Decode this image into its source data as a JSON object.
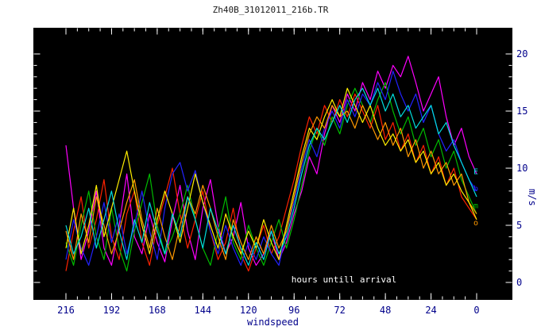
{
  "title": "Zh40B_31012011_216b.TR",
  "colors": {
    "page_bg": "#ffffff",
    "plot_bg": "#000000",
    "axis_text": "#00008b",
    "title_text": "#1a1a1a",
    "tick_mark": "#ffffff",
    "inner_label_text": "#ffffff"
  },
  "chart_data": {
    "type": "line",
    "title": "Zh40B_31012011_216b.TR",
    "xlabel": "windspeed",
    "inner_xlabel": "hours untill arrival",
    "ylabel": "m/s",
    "xlim": [
      216,
      0
    ],
    "ylim": [
      0,
      20
    ],
    "x_reversed": true,
    "grid": false,
    "legend": "none",
    "x_ticks": [
      216,
      192,
      168,
      144,
      120,
      96,
      72,
      48,
      24,
      0
    ],
    "y_ticks": [
      0,
      5,
      10,
      15,
      20
    ],
    "x_minor_step": 6,
    "y_minor_step": 1,
    "x": [
      216,
      212,
      208,
      204,
      200,
      196,
      192,
      188,
      184,
      180,
      176,
      172,
      168,
      164,
      160,
      156,
      152,
      148,
      144,
      140,
      136,
      132,
      128,
      124,
      120,
      116,
      112,
      108,
      104,
      100,
      96,
      92,
      88,
      84,
      80,
      76,
      72,
      68,
      64,
      60,
      56,
      52,
      48,
      44,
      40,
      36,
      32,
      28,
      24,
      20,
      16,
      12,
      8,
      4,
      0
    ],
    "series": [
      {
        "name": "magenta",
        "color": "#ff00ff",
        "values": [
          12.0,
          6.5,
          2.0,
          4.5,
          8.0,
          3.0,
          1.5,
          5.0,
          9.5,
          4.0,
          2.5,
          6.0,
          3.5,
          1.8,
          5.5,
          8.5,
          4.5,
          2.0,
          6.5,
          9.0,
          5.0,
          2.5,
          4.0,
          7.0,
          3.0,
          1.5,
          2.5,
          4.5,
          2.0,
          3.5,
          6.0,
          8.0,
          11.0,
          9.5,
          13.0,
          15.5,
          14.0,
          16.5,
          15.0,
          17.5,
          16.0,
          18.5,
          17.0,
          19.0,
          18.0,
          19.8,
          17.5,
          15.0,
          16.5,
          18.0,
          14.5,
          12.0,
          13.5,
          11.0,
          9.5
        ]
      },
      {
        "name": "red",
        "color": "#ff2200",
        "values": [
          1.0,
          4.5,
          7.5,
          3.0,
          5.5,
          9.0,
          4.0,
          2.0,
          6.0,
          8.0,
          3.5,
          1.5,
          5.0,
          7.5,
          10.0,
          6.0,
          3.0,
          5.5,
          8.0,
          4.5,
          2.0,
          3.5,
          6.5,
          2.5,
          1.0,
          3.0,
          5.0,
          2.5,
          4.0,
          6.5,
          9.0,
          12.0,
          14.5,
          13.0,
          15.5,
          14.0,
          16.0,
          14.5,
          16.5,
          15.0,
          13.5,
          15.5,
          12.5,
          14.0,
          11.5,
          13.0,
          10.5,
          12.0,
          9.5,
          11.0,
          8.5,
          10.0,
          7.5,
          6.5,
          5.5
        ]
      },
      {
        "name": "green",
        "color": "#00bb00",
        "values": [
          3.5,
          1.5,
          5.0,
          8.0,
          4.0,
          2.0,
          6.5,
          3.0,
          1.0,
          4.5,
          7.0,
          9.5,
          5.0,
          2.5,
          4.0,
          6.0,
          8.5,
          5.5,
          3.0,
          1.5,
          4.5,
          7.5,
          3.5,
          2.0,
          5.0,
          3.0,
          1.5,
          3.5,
          5.5,
          3.0,
          5.5,
          8.5,
          11.5,
          13.5,
          12.0,
          14.5,
          13.0,
          15.5,
          17.0,
          15.5,
          14.0,
          16.0,
          17.5,
          15.0,
          13.0,
          14.5,
          12.0,
          13.5,
          11.0,
          12.5,
          10.0,
          11.5,
          9.0,
          7.5,
          6.0
        ]
      },
      {
        "name": "blue",
        "color": "#2222ff",
        "values": [
          2.0,
          5.5,
          3.0,
          1.5,
          4.0,
          7.0,
          3.5,
          6.0,
          2.5,
          5.0,
          8.0,
          4.5,
          2.0,
          6.5,
          9.5,
          10.5,
          8.0,
          9.8,
          7.0,
          4.5,
          2.5,
          5.0,
          3.0,
          1.5,
          3.5,
          2.0,
          4.0,
          2.5,
          1.5,
          4.5,
          7.0,
          10.0,
          12.5,
          11.0,
          13.5,
          15.0,
          13.5,
          16.0,
          14.5,
          16.5,
          15.5,
          17.5,
          16.0,
          18.5,
          16.5,
          15.0,
          16.5,
          14.0,
          15.5,
          13.0,
          11.5,
          12.5,
          10.5,
          9.0,
          8.0
        ]
      },
      {
        "name": "orange",
        "color": "#ff9900",
        "values": [
          4.5,
          2.0,
          6.0,
          3.5,
          7.5,
          5.0,
          2.5,
          4.5,
          7.0,
          9.0,
          5.5,
          3.0,
          6.5,
          4.0,
          2.0,
          5.0,
          7.5,
          6.0,
          8.5,
          6.5,
          4.0,
          2.0,
          5.5,
          3.5,
          2.0,
          4.0,
          2.5,
          5.0,
          3.0,
          4.5,
          7.5,
          10.5,
          13.0,
          14.5,
          13.5,
          15.5,
          14.5,
          15.0,
          13.5,
          15.5,
          14.0,
          12.5,
          14.0,
          12.0,
          13.5,
          11.0,
          12.5,
          10.0,
          11.5,
          9.5,
          10.5,
          8.5,
          9.5,
          7.0,
          6.0
        ]
      },
      {
        "name": "yellow",
        "color": "#ffee00",
        "values": [
          3.0,
          6.5,
          2.5,
          5.0,
          8.5,
          4.0,
          6.5,
          9.0,
          11.5,
          8.0,
          5.0,
          2.5,
          5.5,
          8.0,
          6.0,
          3.5,
          6.5,
          9.5,
          7.0,
          5.0,
          3.0,
          6.0,
          4.0,
          2.5,
          4.5,
          3.0,
          5.5,
          3.5,
          2.0,
          5.0,
          8.0,
          11.0,
          13.5,
          12.5,
          14.5,
          16.0,
          14.5,
          17.0,
          15.5,
          14.0,
          15.5,
          13.5,
          12.0,
          13.0,
          11.5,
          12.5,
          10.5,
          11.5,
          9.5,
          10.5,
          8.5,
          9.5,
          8.0,
          7.0,
          5.5
        ]
      },
      {
        "name": "cyan",
        "color": "#00dddd",
        "values": [
          5.0,
          2.5,
          4.0,
          6.5,
          3.0,
          5.5,
          8.0,
          4.5,
          2.0,
          5.5,
          3.5,
          7.0,
          4.5,
          2.5,
          6.0,
          4.0,
          7.5,
          5.5,
          3.0,
          6.5,
          4.5,
          2.5,
          5.0,
          3.0,
          1.5,
          3.5,
          2.0,
          4.5,
          2.5,
          4.0,
          6.5,
          9.5,
          12.0,
          13.5,
          12.5,
          14.0,
          15.5,
          14.0,
          16.0,
          17.0,
          15.5,
          17.0,
          15.0,
          16.5,
          14.5,
          15.5,
          13.5,
          14.5,
          15.5,
          13.0,
          14.0,
          12.0,
          10.5,
          9.0,
          7.5
        ]
      }
    ],
    "end_labels": [
      {
        "text": "E",
        "color": "#00dddd",
        "value": 9.7
      },
      {
        "text": "b",
        "color": "#2222ff",
        "value": 8.2
      },
      {
        "text": "m",
        "color": "#00bb00",
        "value": 6.7
      },
      {
        "text": "o",
        "color": "#ff9900",
        "value": 5.2
      }
    ]
  }
}
